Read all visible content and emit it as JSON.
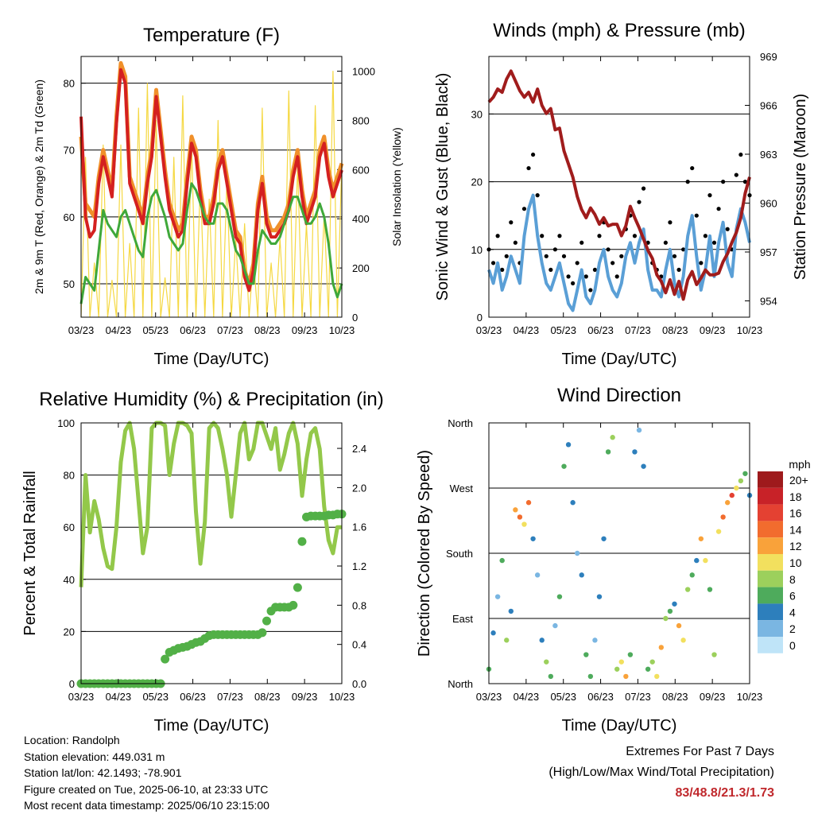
{
  "charts": {
    "temperature": {
      "type": "line",
      "title": "Temperature (F)",
      "xlabel": "Time (Day/UTC)",
      "ylabel_left": "2m & 9m T (Red, Orange) & 2m Td (Green)",
      "ylabel_right": "Solar Insolation (Yellow)",
      "x_ticks": [
        "03/23",
        "04/23",
        "05/23",
        "06/23",
        "07/23",
        "08/23",
        "09/23",
        "10/23"
      ],
      "y_left_ticks": [
        50,
        60,
        70,
        80
      ],
      "y_left_range": [
        45,
        84
      ],
      "y_right_ticks": [
        0,
        200,
        400,
        600,
        800,
        1000
      ],
      "y_right_range": [
        0,
        1060
      ],
      "series": [
        {
          "color": "#f0902a",
          "axis": "left",
          "values": [
            72,
            62,
            61,
            60,
            66,
            70,
            67,
            64,
            75,
            83,
            81,
            66,
            64,
            62,
            60,
            66,
            70,
            79,
            73,
            67,
            62,
            60,
            58,
            59,
            66,
            72,
            70,
            64,
            60,
            60,
            63,
            68,
            70,
            66,
            62,
            58,
            57,
            52,
            50,
            53,
            62,
            66,
            60,
            58,
            58,
            59,
            60,
            62,
            67,
            70,
            64,
            60,
            62,
            64,
            70,
            72,
            67,
            64,
            66,
            68
          ]
        },
        {
          "color": "#d42020",
          "axis": "left",
          "values": [
            75,
            60,
            57,
            58,
            65,
            69,
            66,
            63,
            74,
            82,
            80,
            65,
            63,
            61,
            59,
            65,
            69,
            78,
            72,
            66,
            61,
            59,
            57,
            58,
            65,
            71,
            69,
            63,
            59,
            59,
            62,
            67,
            69,
            65,
            61,
            57,
            56,
            51,
            49,
            52,
            61,
            65,
            59,
            57,
            57,
            58,
            59,
            61,
            66,
            69,
            63,
            59,
            61,
            63,
            69,
            71,
            66,
            63,
            65,
            67
          ]
        },
        {
          "color": "#3fa83a",
          "axis": "left",
          "values": [
            47,
            51,
            50,
            49,
            55,
            61,
            59,
            58,
            57,
            60,
            61,
            59,
            57,
            55,
            54,
            60,
            63,
            64,
            62,
            60,
            57,
            56,
            55,
            56,
            61,
            65,
            64,
            62,
            60,
            59,
            59,
            62,
            62,
            61,
            58,
            55,
            54,
            52,
            50,
            50,
            55,
            58,
            57,
            56,
            56,
            57,
            59,
            61,
            63,
            63,
            61,
            59,
            59,
            60,
            62,
            60,
            56,
            50,
            48,
            50
          ]
        },
        {
          "color": "#f5d842",
          "axis": "right",
          "values": [
            0,
            650,
            0,
            220,
            0,
            700,
            0,
            150,
            0,
            700,
            0,
            300,
            0,
            850,
            0,
            950,
            0,
            800,
            0,
            160,
            0,
            650,
            0,
            900,
            0,
            720,
            0,
            560,
            0,
            480,
            0,
            800,
            0,
            560,
            0,
            320,
            0,
            380,
            0,
            240,
            0,
            850,
            0,
            220,
            0,
            320,
            0,
            920,
            0,
            620,
            0,
            380,
            0,
            860,
            0,
            420,
            0,
            1000,
            0,
            640
          ]
        }
      ]
    },
    "winds": {
      "type": "scatter",
      "title": "Winds (mph) & Pressure (mb)",
      "xlabel": "Time (Day/UTC)",
      "ylabel_left": "Sonic Wind & Gust (Blue, Black)",
      "ylabel_right": "Station Pressure (Maroon)",
      "x_ticks": [
        "03/23",
        "04/23",
        "05/23",
        "06/23",
        "07/23",
        "08/23",
        "09/23",
        "10/23"
      ],
      "y_left_ticks": [
        0,
        10,
        20,
        30
      ],
      "y_left_range": [
        0,
        38.5
      ],
      "y_right_ticks": [
        954,
        957,
        960,
        963,
        966,
        969
      ],
      "y_right_range": [
        953,
        969
      ],
      "series": [
        {
          "color": "#000000",
          "axis": "left",
          "values": [
            10,
            8,
            12,
            7,
            9,
            14,
            11,
            8,
            16,
            22,
            24,
            18,
            12,
            9,
            7,
            10,
            12,
            9,
            6,
            5,
            8,
            11,
            6,
            4,
            7,
            12,
            14,
            10,
            8,
            6,
            9,
            13,
            15,
            12,
            17,
            19,
            11,
            8,
            7,
            6,
            11,
            14,
            9,
            7,
            10,
            20,
            22,
            15,
            8,
            12,
            18,
            11,
            16,
            20,
            13,
            10,
            21,
            24,
            20,
            18
          ]
        },
        {
          "color": "#5a9fd6",
          "axis": "left",
          "values": [
            7,
            5,
            8,
            4,
            6,
            9,
            7,
            5,
            12,
            16,
            18,
            12,
            8,
            5,
            4,
            6,
            8,
            5,
            2,
            1,
            4,
            7,
            3,
            2,
            4,
            8,
            10,
            6,
            4,
            3,
            5,
            9,
            11,
            8,
            11,
            13,
            7,
            4,
            4,
            3,
            7,
            10,
            5,
            3,
            6,
            12,
            15,
            9,
            4,
            7,
            12,
            6,
            11,
            14,
            8,
            6,
            13,
            16,
            14,
            11
          ]
        },
        {
          "color": "#a01c1c",
          "axis": "right",
          "values": [
            966.2,
            966.5,
            967.0,
            966.8,
            967.6,
            968.1,
            967.5,
            966.9,
            966.5,
            966.8,
            966.2,
            967.0,
            966.0,
            965.5,
            965.8,
            964.5,
            964.6,
            963.2,
            962.4,
            961.6,
            960.4,
            959.6,
            959.1,
            959.7,
            959.3,
            958.7,
            959.1,
            958.6,
            958.7,
            958.7,
            958.0,
            958.6,
            959.8,
            959.1,
            958.5,
            957.8,
            957.1,
            956.6,
            955.6,
            955.2,
            954.5,
            955.3,
            954.4,
            955.2,
            954.1,
            955.3,
            955.8,
            955.0,
            955.4,
            955.9,
            955.6,
            955.6,
            955.7,
            956.4,
            956.9,
            957.6,
            958.2,
            959.1,
            960.6,
            961.6
          ]
        }
      ]
    },
    "humidity": {
      "type": "scatter",
      "title": "Relative Humidity (%) & Precipitation (in)",
      "xlabel": "Time (Day/UTC)",
      "ylabel_left": "Percent & Total Rainfall",
      "x_ticks": [
        "03/23",
        "04/23",
        "05/23",
        "06/23",
        "07/23",
        "08/23",
        "09/23",
        "10/23"
      ],
      "y_left_ticks": [
        0,
        20,
        40,
        60,
        80,
        100
      ],
      "y_left_range": [
        0,
        100
      ],
      "y_right_ticks": [
        "0.0",
        "0.4",
        "0.8",
        "1.2",
        "1.6",
        "2.0",
        "2.4"
      ],
      "y_right_range": [
        0,
        2.66
      ],
      "series": [
        {
          "color": "#93c84a",
          "axis": "left",
          "values": [
            37,
            80,
            58,
            70,
            63,
            52,
            45,
            44,
            60,
            85,
            97,
            100,
            90,
            70,
            50,
            60,
            98,
            100,
            100,
            99,
            80,
            92,
            100,
            100,
            99,
            96,
            66,
            46,
            62,
            98,
            100,
            98,
            90,
            80,
            64,
            80,
            96,
            100,
            86,
            90,
            100,
            100,
            95,
            90,
            98,
            82,
            88,
            96,
            100,
            92,
            72,
            86,
            96,
            98,
            90,
            68,
            55,
            50,
            60,
            60
          ]
        },
        {
          "color": "#52b047",
          "axis": "right",
          "values": [
            0,
            0,
            0,
            0,
            0,
            0,
            0,
            0,
            0,
            0,
            0,
            0,
            0,
            0,
            0,
            0,
            0,
            0,
            0,
            0.25,
            0.32,
            0.34,
            0.36,
            0.37,
            0.38,
            0.4,
            0.42,
            0.43,
            0.46,
            0.49,
            0.5,
            0.5,
            0.5,
            0.5,
            0.5,
            0.5,
            0.5,
            0.5,
            0.5,
            0.5,
            0.5,
            0.52,
            0.64,
            0.74,
            0.78,
            0.78,
            0.78,
            0.78,
            0.8,
            0.98,
            1.45,
            1.7,
            1.71,
            1.71,
            1.71,
            1.71,
            1.72,
            1.72,
            1.73,
            1.73
          ]
        }
      ]
    },
    "direction": {
      "type": "scatter",
      "title": "Wind Direction",
      "xlabel": "Time (Day/UTC)",
      "ylabel": "Direction (Colored By Speed)",
      "x_ticks": [
        "03/23",
        "04/23",
        "05/23",
        "06/23",
        "07/23",
        "08/23",
        "09/23",
        "10/23"
      ],
      "y_ticks": [
        "North",
        "East",
        "South",
        "West",
        "North"
      ],
      "y_range": [
        0,
        360
      ],
      "legend": {
        "title": "mph",
        "labels": [
          "20+",
          "18",
          "16",
          "14",
          "12",
          "10",
          "8",
          "6",
          "4",
          "2",
          "0"
        ],
        "colors": [
          "#9e1a1c",
          "#c82228",
          "#e44132",
          "#f26c2e",
          "#f9a23a",
          "#f2e05e",
          "#9cd05c",
          "#4eab5c",
          "#2d7fbc",
          "#7ab6e2",
          "#bfe4f8"
        ]
      },
      "series": [
        {
          "name": "direction",
          "values": [
            20,
            70,
            120,
            170,
            60,
            100,
            240,
            230,
            220,
            250,
            200,
            150,
            60,
            30,
            10,
            80,
            120,
            300,
            330,
            250,
            180,
            150,
            40,
            10,
            60,
            120,
            200,
            320,
            340,
            20,
            30,
            10,
            40,
            320,
            350,
            300,
            20,
            30,
            10,
            50,
            90,
            100,
            110,
            80,
            60,
            130,
            150,
            170,
            200,
            170,
            130,
            40,
            210,
            230,
            250,
            260,
            270,
            280,
            290,
            260
          ]
        },
        {
          "name": "speed",
          "values": [
            5,
            3,
            2,
            6,
            8,
            4,
            12,
            14,
            10,
            13,
            3,
            2,
            4,
            8,
            6,
            2,
            6,
            5,
            4,
            3,
            2,
            4,
            6,
            5,
            2,
            3,
            4,
            6,
            8,
            7,
            10,
            12,
            6,
            3,
            2,
            4,
            6,
            8,
            10,
            12,
            8,
            6,
            4,
            11,
            10,
            8,
            6,
            4,
            12,
            9,
            6,
            8,
            10,
            14,
            12,
            16,
            10,
            8,
            6,
            4
          ]
        }
      ]
    }
  },
  "info": {
    "location": "Location: Randolph",
    "elevation": "Station elevation: 449.031 m",
    "latlon": "Station lat/lon: 42.1493; -78.901",
    "created": "Figure created on Tue, 2025-06-10, at 23:33 UTC",
    "recent": "Most recent data timestamp: 2025/06/10 23:15:00"
  },
  "extremes": {
    "line1": "Extremes For Past 7 Days",
    "line2": "(High/Low/Max Wind/Total Precipitation)",
    "values": "83/48.8/21.3/1.73"
  }
}
